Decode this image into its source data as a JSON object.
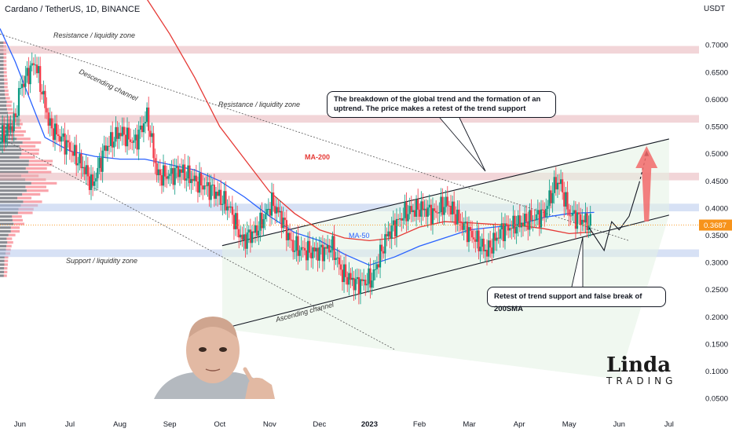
{
  "header": {
    "symbol_line": "Cardano / TetherUS, 1D, BINANCE",
    "currency": "USDT"
  },
  "annotations": {
    "resistance_top": "Resistance / liquidity zone",
    "resistance_mid": "Resistance / liquidity zone",
    "support": "Support / liquidity zone",
    "descending_channel": "Descending channel",
    "ascending_channel": "Ascending channel",
    "ma200_label": "MA-200",
    "ma50_label": "MA-50",
    "callout_top": "The breakdown of the global trend and the formation of an uptrend. The price makes a retest of the trend support",
    "callout_bottom": "Retest of trend support and false break of 200SMA"
  },
  "logo": {
    "main": "Linda",
    "sub": "TRADING"
  },
  "colors": {
    "up": "#089981",
    "down": "#f23645",
    "ma200": "#e53935",
    "ma50": "#2962ff",
    "zone_resistance": "#e7b2b8",
    "zone_support": "#b6c8ec",
    "channel_fill": "#e4f2e4",
    "arrow": "#f26a6a"
  },
  "chart_data": {
    "type": "candlestick",
    "x_tick_labels": [
      "Jun",
      "Jul",
      "Aug",
      "Sep",
      "Oct",
      "Nov",
      "Dec",
      "2023",
      "Feb",
      "Mar",
      "Apr",
      "May",
      "Jun",
      "Jul"
    ],
    "x_ticks_months": [
      0,
      1,
      2,
      3,
      4,
      5,
      6,
      7,
      8,
      9,
      10,
      11,
      12,
      13
    ],
    "y_ticks": [
      0.05,
      0.1,
      0.15,
      0.2,
      0.25,
      0.3,
      0.35,
      0.4,
      0.45,
      0.5,
      0.55,
      0.6,
      0.65,
      0.7
    ],
    "y_tick_labels": [
      "0.0500",
      "0.1000",
      "0.1500",
      "0.2000",
      "0.2500",
      "0.3000",
      "0.3500",
      "0.4000",
      "0.4500",
      "0.5000",
      "0.5500",
      "0.6000",
      "0.6500",
      "0.7000"
    ],
    "ylim": [
      0.02,
      0.745
    ],
    "xlim": [
      -0.4,
      13.6
    ],
    "last_price": 0.3687,
    "last_price_label": "0.3687",
    "price_path": [
      [
        -0.45,
        0.52
      ],
      [
        -0.1,
        0.56
      ],
      [
        0.0,
        0.62
      ],
      [
        0.3,
        0.67
      ],
      [
        0.6,
        0.55
      ],
      [
        1.0,
        0.51
      ],
      [
        1.3,
        0.47
      ],
      [
        1.45,
        0.44
      ],
      [
        1.7,
        0.51
      ],
      [
        2.0,
        0.54
      ],
      [
        2.3,
        0.52
      ],
      [
        2.55,
        0.57
      ],
      [
        2.75,
        0.46
      ],
      [
        3.0,
        0.46
      ],
      [
        3.2,
        0.47
      ],
      [
        3.5,
        0.45
      ],
      [
        3.9,
        0.43
      ],
      [
        4.2,
        0.4
      ],
      [
        4.45,
        0.34
      ],
      [
        4.75,
        0.36
      ],
      [
        5.05,
        0.41
      ],
      [
        5.25,
        0.38
      ],
      [
        5.45,
        0.33
      ],
      [
        5.75,
        0.32
      ],
      [
        6.05,
        0.32
      ],
      [
        6.25,
        0.33
      ],
      [
        6.45,
        0.28
      ],
      [
        6.75,
        0.26
      ],
      [
        7.05,
        0.27
      ],
      [
        7.35,
        0.35
      ],
      [
        7.7,
        0.39
      ],
      [
        8.0,
        0.4
      ],
      [
        8.3,
        0.39
      ],
      [
        8.55,
        0.41
      ],
      [
        8.85,
        0.37
      ],
      [
        9.15,
        0.34
      ],
      [
        9.35,
        0.32
      ],
      [
        9.65,
        0.36
      ],
      [
        9.95,
        0.37
      ],
      [
        10.25,
        0.38
      ],
      [
        10.5,
        0.39
      ],
      [
        10.7,
        0.44
      ],
      [
        10.8,
        0.45
      ],
      [
        11.0,
        0.39
      ],
      [
        11.2,
        0.38
      ],
      [
        11.45,
        0.37
      ]
    ],
    "ma200_path": [
      [
        2.5,
        0.79
      ],
      [
        3.0,
        0.72
      ],
      [
        3.5,
        0.64
      ],
      [
        4.0,
        0.55
      ],
      [
        4.5,
        0.49
      ],
      [
        5.0,
        0.43
      ],
      [
        5.5,
        0.39
      ],
      [
        6.0,
        0.36
      ],
      [
        6.5,
        0.345
      ],
      [
        7.0,
        0.34
      ],
      [
        7.5,
        0.345
      ],
      [
        8.0,
        0.365
      ],
      [
        8.5,
        0.375
      ],
      [
        9.0,
        0.373
      ],
      [
        9.5,
        0.37
      ],
      [
        10.0,
        0.368
      ],
      [
        10.5,
        0.362
      ],
      [
        11.0,
        0.353
      ],
      [
        11.45,
        0.356
      ]
    ],
    "ma50_path": [
      [
        -0.4,
        0.73
      ],
      [
        -0.1,
        0.67
      ],
      [
        0.2,
        0.6
      ],
      [
        0.5,
        0.53
      ],
      [
        1.0,
        0.505
      ],
      [
        1.5,
        0.495
      ],
      [
        2.0,
        0.49
      ],
      [
        2.5,
        0.49
      ],
      [
        3.0,
        0.48
      ],
      [
        3.5,
        0.47
      ],
      [
        4.0,
        0.45
      ],
      [
        4.5,
        0.42
      ],
      [
        5.0,
        0.385
      ],
      [
        5.5,
        0.355
      ],
      [
        6.0,
        0.34
      ],
      [
        6.5,
        0.315
      ],
      [
        7.0,
        0.295
      ],
      [
        7.5,
        0.31
      ],
      [
        8.0,
        0.33
      ],
      [
        8.5,
        0.345
      ],
      [
        9.0,
        0.36
      ],
      [
        9.5,
        0.365
      ],
      [
        10.0,
        0.37
      ],
      [
        10.5,
        0.383
      ],
      [
        11.0,
        0.39
      ],
      [
        11.5,
        0.392
      ]
    ],
    "zones": [
      {
        "kind": "resistance",
        "from": 0.684,
        "to": 0.698
      },
      {
        "kind": "resistance",
        "from": 0.557,
        "to": 0.571
      },
      {
        "kind": "resistance",
        "from": 0.451,
        "to": 0.465
      },
      {
        "kind": "support",
        "from": 0.394,
        "to": 0.408
      },
      {
        "kind": "support",
        "from": 0.31,
        "to": 0.324
      }
    ],
    "descending_channel": {
      "upper": [
        [
          -0.4,
          0.72
        ],
        [
          12.2,
          0.34
        ]
      ],
      "lower": [
        [
          -0.4,
          0.53
        ],
        [
          7.5,
          0.14
        ]
      ]
    },
    "ascending_channel": {
      "upper": [
        [
          4.05,
          0.331
        ],
        [
          13.0,
          0.527
        ]
      ],
      "lower": [
        [
          4.05,
          0.178
        ],
        [
          13.0,
          0.387
        ]
      ],
      "base_bottom": [
        [
          4.05,
          0.178
        ],
        [
          12.0,
          0.085
        ]
      ]
    },
    "projection": {
      "solid": [
        [
          11.4,
          0.364
        ],
        [
          11.7,
          0.322
        ],
        [
          11.85,
          0.375
        ],
        [
          12.0,
          0.36
        ],
        [
          12.2,
          0.385
        ],
        [
          12.4,
          0.445
        ]
      ],
      "dashed": [
        [
          12.4,
          0.445
        ],
        [
          12.55,
          0.5
        ]
      ]
    }
  }
}
